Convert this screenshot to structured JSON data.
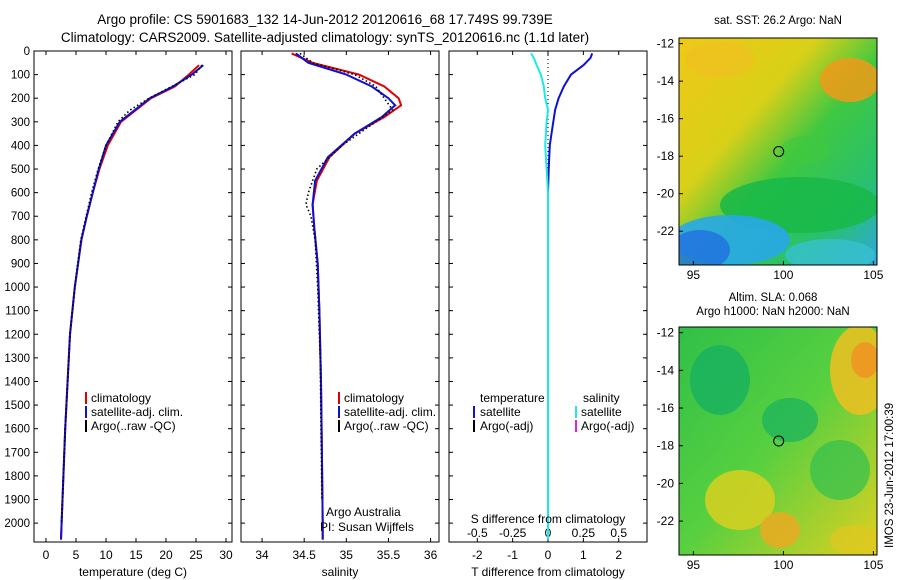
{
  "header": {
    "title_line1": "Argo profile: CS 5901683_132 14-Jun-2012 20120616_68 17.749S 99.739E",
    "title_line2": "Climatology: CARS2009. Satellite-adjusted climatology: synTS_20120616.nc (1.1d later)"
  },
  "colors": {
    "climatology": "#e00000",
    "satellite": "#1010d0",
    "argo": "#000000",
    "sat_salinity": "#20e8e8",
    "argo_adj_salinity": "#e020e0"
  },
  "chart_data": [
    {
      "type": "line",
      "name": "temperature-profile",
      "xlabel": "temperature (deg C)",
      "xlim": [
        -2,
        31
      ],
      "xticks": [
        0,
        5,
        10,
        15,
        20,
        25,
        30
      ],
      "ylim": [
        2080,
        0
      ],
      "yticks": [
        0,
        100,
        200,
        300,
        400,
        500,
        600,
        700,
        800,
        900,
        1000,
        1100,
        1200,
        1300,
        1400,
        1500,
        1600,
        1700,
        1800,
        1900,
        2000
      ],
      "legend": [
        "climatology",
        "satellite-adj. clim.",
        "Argo(..raw -QC)"
      ],
      "series": [
        {
          "name": "climatology",
          "color": "#e00000",
          "depth": [
            60,
            100,
            150,
            200,
            300,
            400,
            500,
            600,
            700,
            800,
            1000,
            1200,
            1400,
            1600,
            1800,
            2000,
            2070
          ],
          "values": [
            25.5,
            23.8,
            21.5,
            17.5,
            12.5,
            10.3,
            8.9,
            7.8,
            6.8,
            5.9,
            4.8,
            4.0,
            3.6,
            3.2,
            2.9,
            2.6,
            2.5
          ]
        },
        {
          "name": "satellite",
          "color": "#1010d0",
          "depth": [
            60,
            100,
            150,
            200,
            300,
            400,
            500,
            600,
            700,
            800,
            1000,
            1200,
            1400,
            1600,
            1800,
            2000,
            2070
          ],
          "values": [
            26.2,
            24.3,
            21.2,
            17.3,
            12.3,
            10.0,
            8.8,
            7.8,
            6.8,
            5.9,
            4.8,
            4.0,
            3.6,
            3.2,
            2.9,
            2.6,
            2.5
          ]
        },
        {
          "name": "argo",
          "color": "#000000",
          "depth": [
            60,
            100,
            150,
            200,
            250,
            300,
            400,
            500,
            600,
            700,
            800,
            1000,
            1200,
            1400,
            1600,
            1800,
            2000
          ],
          "values": [
            26.0,
            24.8,
            21.0,
            17.2,
            14.0,
            12.0,
            10.0,
            8.7,
            7.6,
            6.7,
            5.8,
            4.8,
            4.0,
            3.6,
            3.2,
            2.9,
            2.6
          ]
        }
      ]
    },
    {
      "type": "line",
      "name": "salinity-profile",
      "xlabel": "salinity",
      "xlim": [
        33.75,
        36.1
      ],
      "xticks": [
        34,
        34.5,
        35,
        35.5,
        36
      ],
      "ylim": [
        2080,
        0
      ],
      "legend": [
        "climatology",
        "satellite-adj. clim.",
        "Argo(..raw -QC)"
      ],
      "annotation": [
        "Argo Australia",
        "PI: Susan Wijffels"
      ],
      "series": [
        {
          "name": "climatology",
          "color": "#e00000",
          "depth": [
            10,
            50,
            100,
            150,
            200,
            230,
            280,
            350,
            450,
            550,
            650,
            750,
            900,
            1100,
            1400,
            1700,
            2000,
            2070
          ],
          "values": [
            34.35,
            34.6,
            35.15,
            35.45,
            35.62,
            35.65,
            35.45,
            35.1,
            34.8,
            34.65,
            34.6,
            34.62,
            34.66,
            34.68,
            34.7,
            34.71,
            34.72,
            34.72
          ]
        },
        {
          "name": "satellite",
          "color": "#1010d0",
          "depth": [
            10,
            50,
            100,
            150,
            200,
            230,
            280,
            350,
            450,
            550,
            650,
            750,
            900,
            1100,
            1400,
            1700,
            2000,
            2070
          ],
          "values": [
            34.4,
            34.55,
            35.0,
            35.3,
            35.5,
            35.58,
            35.42,
            35.1,
            34.78,
            34.63,
            34.6,
            34.62,
            34.66,
            34.68,
            34.7,
            34.71,
            34.72,
            34.72
          ]
        },
        {
          "name": "argo",
          "color": "#000000",
          "depth": [
            10,
            50,
            100,
            150,
            200,
            250,
            300,
            400,
            500,
            600,
            650,
            700,
            800,
            1000,
            1300,
            1600,
            1900
          ],
          "values": [
            34.45,
            34.6,
            35.1,
            35.35,
            35.45,
            35.55,
            35.35,
            34.95,
            34.65,
            34.55,
            34.52,
            34.58,
            34.63,
            34.66,
            34.69,
            34.7,
            34.71
          ]
        }
      ]
    },
    {
      "type": "line",
      "name": "difference-profile",
      "xlabel": "T difference from climatology",
      "xlabel_top": "S difference from climatology",
      "xlim": [
        -2.8,
        2.8
      ],
      "xticks": [
        -2,
        -1,
        0,
        1,
        2
      ],
      "xticks_top": [
        -0.5,
        -0.25,
        0,
        0.25,
        0.5
      ],
      "xticks_top_labels": [
        "-0.5",
        "-0.25",
        "0",
        "0.25",
        "0.5"
      ],
      "ylim": [
        2080,
        0
      ],
      "legend_temperature_title": "temperature",
      "legend_salinity_title": "salinity",
      "legend_temperature": [
        "satellite",
        "Argo(-adj)"
      ],
      "legend_salinity": [
        "satellite",
        "Argo(-adj)"
      ],
      "series": [
        {
          "name": "T satellite",
          "color": "#1010d0",
          "depth": [
            10,
            30,
            60,
            100,
            150,
            200,
            250,
            300,
            350,
            400,
            500,
            600,
            800,
            1000,
            1400,
            2000,
            2070
          ],
          "values": [
            1.25,
            1.2,
            1.0,
            0.65,
            0.45,
            0.3,
            0.2,
            0.15,
            0.1,
            0.05,
            0.02,
            0.0,
            0.0,
            0.0,
            0.0,
            0.0,
            0.0
          ]
        },
        {
          "name": "S satellite",
          "color": "#20e8e8",
          "depth": [
            10,
            30,
            60,
            100,
            150,
            200,
            250,
            300,
            400,
            500,
            600,
            800,
            1000,
            1400,
            2000,
            2070
          ],
          "values": [
            -0.12,
            -0.1,
            -0.08,
            -0.05,
            -0.03,
            -0.02,
            0.0,
            -0.01,
            -0.02,
            -0.01,
            0.0,
            0.0,
            0.0,
            0.0,
            0.0,
            0.0
          ]
        }
      ]
    },
    {
      "type": "heatmap",
      "name": "sst-map",
      "title": "sat. SST: 26.2 Argo: NaN",
      "xlim": [
        94.2,
        105.2
      ],
      "ylim": [
        -23.8,
        -11.7
      ],
      "xticks": [
        95,
        100,
        105
      ],
      "yticks": [
        -12,
        -14,
        -16,
        -18,
        -20,
        -22
      ],
      "profile_marker": {
        "lon": 99.739,
        "lat": -17.749
      }
    },
    {
      "type": "heatmap",
      "name": "sla-map",
      "title_line1": "Altim. SLA: 0.068",
      "title_line2": "Argo h1000: NaN h2000: NaN",
      "xlim": [
        94.2,
        105.2
      ],
      "ylim": [
        -23.8,
        -11.7
      ],
      "xticks": [
        95,
        100,
        105
      ],
      "yticks": [
        -12,
        -14,
        -16,
        -18,
        -20,
        -22
      ],
      "profile_marker": {
        "lon": 99.739,
        "lat": -17.749
      }
    }
  ],
  "stamp": "IMOS 23-Jun-2012 17:00:39"
}
